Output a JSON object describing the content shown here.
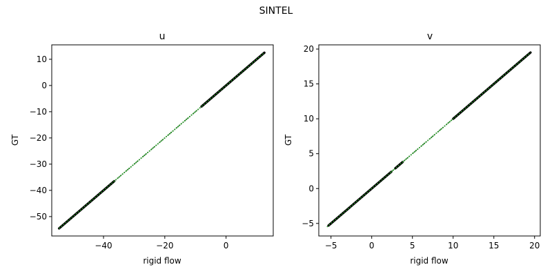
{
  "figure": {
    "title": "SINTEL"
  },
  "chart_data": [
    {
      "type": "scatter",
      "title": "u",
      "xlabel": "rigid flow",
      "ylabel": "GT",
      "xlim": [
        -56.9,
        15.4
      ],
      "ylim": [
        -57.4,
        15.5
      ],
      "xticks": [
        -40,
        -20,
        0
      ],
      "xtick_labels": [
        "−40",
        "−20",
        "0"
      ],
      "yticks": [
        10,
        0,
        -10,
        -20,
        -30,
        -40,
        -50
      ],
      "ytick_labels": [
        "10",
        "0",
        "−10",
        "−20",
        "−30",
        "−40",
        "−50"
      ],
      "grid": false,
      "legend": "none",
      "series": [
        {
          "kind": "dense",
          "x_range": [
            -54.5,
            -36.5
          ],
          "y_range": [
            -54.5,
            -36.5
          ],
          "color": "#000000"
        },
        {
          "kind": "sparse",
          "x_range": [
            -36.5,
            -8.0
          ],
          "y_range": [
            -36.5,
            -8.0
          ],
          "color": "#1f6f1f"
        },
        {
          "kind": "dense",
          "x_range": [
            -8.0,
            12.5
          ],
          "y_range": [
            -8.0,
            12.5
          ],
          "color": "#000000"
        }
      ],
      "fit_line": {
        "x": [
          -54.5,
          12.5
        ],
        "y": [
          -54.5,
          12.5
        ],
        "color": "#2ca02c",
        "style": "dotted"
      }
    },
    {
      "type": "scatter",
      "title": "v",
      "xlabel": "rigid flow",
      "ylabel": "GT",
      "xlim": [
        -6.5,
        20.7
      ],
      "ylim": [
        -6.8,
        20.6
      ],
      "xticks": [
        -5,
        0,
        5,
        10,
        15,
        20
      ],
      "xtick_labels": [
        "−5",
        "0",
        "5",
        "10",
        "15",
        "20"
      ],
      "yticks": [
        20,
        15,
        10,
        5,
        0,
        -5
      ],
      "ytick_labels": [
        "20",
        "15",
        "10",
        "5",
        "0",
        "−5"
      ],
      "grid": false,
      "legend": "none",
      "series": [
        {
          "kind": "dense",
          "x_range": [
            -5.3,
            2.4
          ],
          "y_range": [
            -5.3,
            2.4
          ],
          "color": "#000000"
        },
        {
          "kind": "sparse",
          "x_range": [
            2.4,
            2.9
          ],
          "y_range": [
            2.4,
            2.9
          ],
          "color": "#1f6f1f"
        },
        {
          "kind": "dense",
          "x_range": [
            2.9,
            3.8
          ],
          "y_range": [
            2.9,
            3.8
          ],
          "color": "#000000"
        },
        {
          "kind": "sparse",
          "x_range": [
            3.8,
            10.0
          ],
          "y_range": [
            3.8,
            10.0
          ],
          "color": "#1f6f1f"
        },
        {
          "kind": "dense",
          "x_range": [
            10.0,
            19.5
          ],
          "y_range": [
            10.0,
            19.5
          ],
          "color": "#000000"
        }
      ],
      "fit_line": {
        "x": [
          -5.5,
          19.5
        ],
        "y": [
          -5.5,
          19.5
        ],
        "color": "#2ca02c",
        "style": "dotted"
      }
    }
  ]
}
